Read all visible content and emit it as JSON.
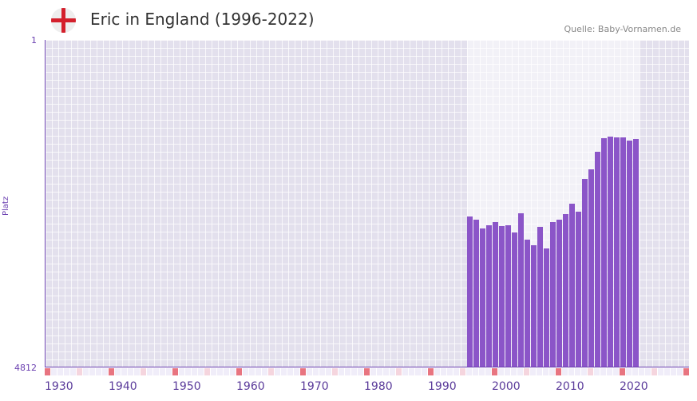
{
  "header": {
    "title": "Eric in England (1996-2022)",
    "source": "Quelle: Baby-Vornamen.de",
    "flag_icon": "england-flag-icon"
  },
  "colors": {
    "bar": "#8b55c8",
    "decade_marker": "#e87480",
    "half_decade_marker": "#f5d5de"
  },
  "chart_data": {
    "type": "bar",
    "title": "Eric in England (1996-2022)",
    "ylabel": "Platz",
    "ylim": [
      4812,
      1
    ],
    "yticks": [
      "1",
      "4812"
    ],
    "xlim": [
      1930,
      2030
    ],
    "xticks": [
      "1930",
      "1940",
      "1950",
      "1960",
      "1970",
      "1980",
      "1990",
      "2000",
      "2010",
      "2020"
    ],
    "x": [
      1996,
      1997,
      1998,
      1999,
      2000,
      2001,
      2002,
      2003,
      2004,
      2005,
      2006,
      2007,
      2008,
      2009,
      2010,
      2011,
      2012,
      2013,
      2014,
      2015,
      2016,
      2017,
      2018,
      2019,
      2020,
      2021,
      2022
    ],
    "values": [
      1411,
      1462,
      1608,
      1554,
      1501,
      1568,
      1554,
      1677,
      1361,
      1803,
      1906,
      1581,
      1965,
      1501,
      1462,
      1374,
      1204,
      1336,
      867,
      752,
      562,
      434,
      420,
      427,
      427,
      455,
      441
    ]
  }
}
